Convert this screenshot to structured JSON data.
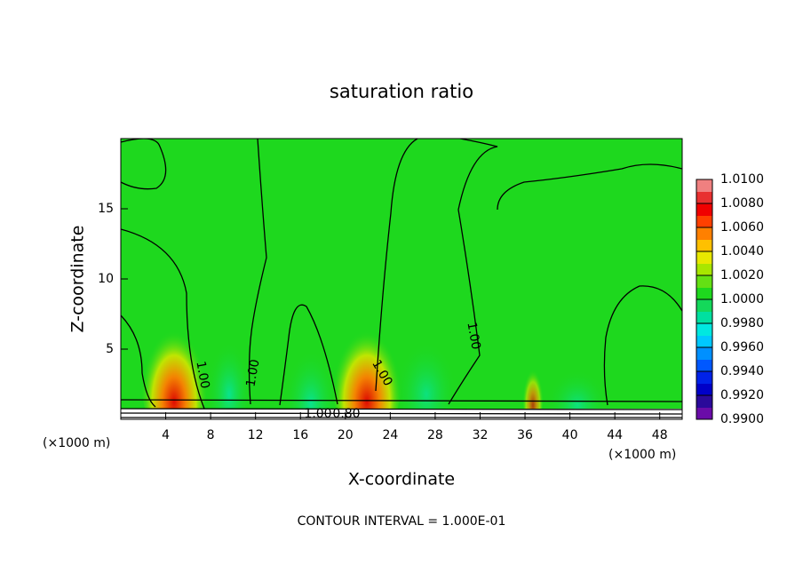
{
  "chart_data": {
    "type": "contour",
    "title": "saturation ratio",
    "x_label": "X-coordinate",
    "y_label": "Z-coordinate",
    "x_unit": "(×1000 m)",
    "footer": "CONTOUR INTERVAL = 1.000E-01",
    "xlim": [
      0,
      50
    ],
    "xticks": [
      4,
      8,
      12,
      16,
      20,
      24,
      28,
      32,
      36,
      40,
      44,
      48
    ],
    "ylim": [
      0,
      20
    ],
    "yticks": [
      5,
      10,
      15
    ],
    "field_color": "#1ed81e",
    "contour_labels": [
      "1.00",
      "1.00",
      "1.00",
      "1.00",
      "1.00",
      "0.80"
    ],
    "colorbar": {
      "lim": [
        0.99,
        1.01
      ],
      "ticks": [
        {
          "value": 0.99,
          "label": "0.9900"
        },
        {
          "value": 0.992,
          "label": "0.9920"
        },
        {
          "value": 0.994,
          "label": "0.9940"
        },
        {
          "value": 0.996,
          "label": "0.9960"
        },
        {
          "value": 0.998,
          "label": "0.9980"
        },
        {
          "value": 1.0,
          "label": "1.0000"
        },
        {
          "value": 1.002,
          "label": "1.0020"
        },
        {
          "value": 1.004,
          "label": "1.0040"
        },
        {
          "value": 1.006,
          "label": "1.0060"
        },
        {
          "value": 1.008,
          "label": "1.0080"
        },
        {
          "value": 1.01,
          "label": "1.0100"
        }
      ],
      "colors": [
        "#6a0ca8",
        "#2a0a9a",
        "#0000c8",
        "#0022e8",
        "#0058ff",
        "#0090ff",
        "#00c8ff",
        "#00e8e0",
        "#00e0a0",
        "#14d85a",
        "#1ed81e",
        "#64e014",
        "#a8e600",
        "#e8e800",
        "#ffc000",
        "#ff8000",
        "#ff4000",
        "#f00000",
        "#e83030",
        "#f08080"
      ]
    }
  }
}
